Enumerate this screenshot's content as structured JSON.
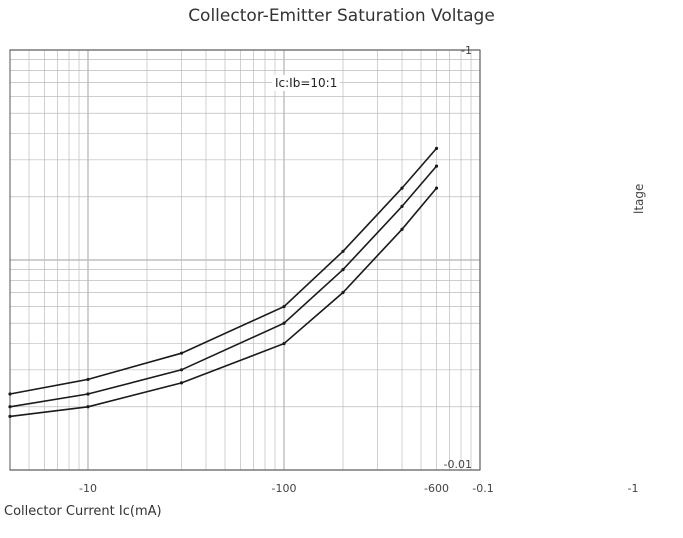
{
  "chart_data": {
    "type": "line",
    "title": "Collector-Emitter Saturation Voltage",
    "xlabel": "Collector Current   Ic(mA)",
    "ylabel": "",
    "annotation": "Ic:Ib=10:1",
    "right_label": "ltage",
    "x_scale": "log",
    "y_scale": "log",
    "x_ticks": [
      "-10",
      "-100",
      "-600"
    ],
    "y_ticks": [
      "-1",
      "-0.01"
    ],
    "secondary_x_ticks": [
      "-0.1",
      "-1"
    ],
    "xlim": [
      -4,
      -1000
    ],
    "ylim": [
      -0.01,
      -1
    ],
    "series": [
      {
        "x": [
          -4,
          -10,
          -30,
          -100,
          -200,
          -400,
          -600
        ],
        "y": [
          -0.018,
          -0.02,
          -0.026,
          -0.04,
          -0.07,
          -0.14,
          -0.22
        ]
      },
      {
        "x": [
          -4,
          -10,
          -30,
          -100,
          -200,
          -400,
          -600
        ],
        "y": [
          -0.02,
          -0.023,
          -0.03,
          -0.05,
          -0.09,
          -0.18,
          -0.28
        ]
      },
      {
        "x": [
          -4,
          -10,
          -30,
          -100,
          -200,
          -400,
          -600
        ],
        "y": [
          -0.023,
          -0.027,
          -0.036,
          -0.06,
          -0.11,
          -0.22,
          -0.34
        ]
      }
    ]
  },
  "colors": {
    "grid": "#bdbdbd",
    "series": "#1a1a1a",
    "marker": "#c0392b"
  }
}
